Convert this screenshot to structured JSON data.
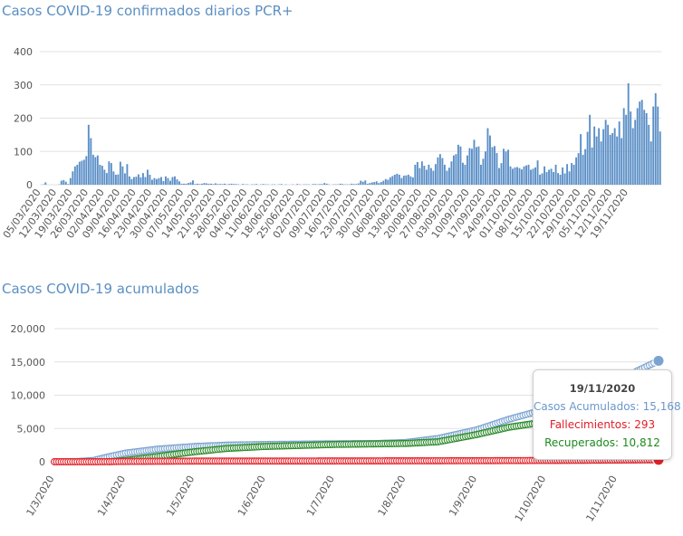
{
  "colors": {
    "bars": "#5b8fc7",
    "accumulated": "#7ba3d1",
    "deaths": "#e3242b",
    "recovered": "#2a8a2a",
    "title": "#5b8fc2"
  },
  "chart_data": [
    {
      "type": "bar",
      "title": "Casos COVID-19 confirmados diarios PCR+",
      "ylim": [
        0,
        400
      ],
      "yticks": [
        "0",
        "100",
        "200",
        "300",
        "400"
      ],
      "date_start": "2020-03-05",
      "xtick_labels": [
        "05/03/2020",
        "12/03/2020",
        "19/03/2020",
        "26/03/2020",
        "02/04/2020",
        "09/04/2020",
        "16/04/2020",
        "23/04/2020",
        "30/04/2020",
        "07/05/2020",
        "14/05/2020",
        "21/05/2020",
        "28/05/2020",
        "04/06/2020",
        "11/06/2020",
        "18/06/2020",
        "25/06/2020",
        "02/07/2020",
        "09/07/2020",
        "16/07/2020",
        "23/07/2020",
        "30/07/2020",
        "06/08/2020",
        "13/08/2020",
        "20/08/2020",
        "27/08/2020",
        "03/09/2020",
        "10/09/2020",
        "17/09/2020",
        "24/09/2020",
        "01/10/2020",
        "08/10/2020",
        "15/10/2020",
        "22/10/2020",
        "29/10/2020",
        "05/11/2020",
        "12/11/2020",
        "19/11/2020"
      ],
      "values": [
        0,
        1,
        7,
        0,
        0,
        0,
        0,
        0,
        1,
        12,
        14,
        9,
        2,
        20,
        40,
        55,
        60,
        69,
        72,
        75,
        86,
        180,
        140,
        90,
        83,
        88,
        60,
        57,
        45,
        35,
        70,
        65,
        40,
        30,
        31,
        69,
        55,
        34,
        62,
        25,
        17,
        23,
        24,
        31,
        22,
        35,
        23,
        45,
        30,
        15,
        20,
        17,
        20,
        23,
        11,
        25,
        20,
        12,
        23,
        25,
        16,
        10,
        3,
        3,
        3,
        5,
        7,
        13,
        2,
        3,
        2,
        3,
        5,
        4,
        3,
        3,
        2,
        4,
        2,
        2,
        2,
        3,
        1,
        2,
        3,
        2,
        2,
        1,
        0,
        2,
        1,
        1,
        0,
        1,
        1,
        2,
        0,
        1,
        2,
        1,
        1,
        0,
        1,
        1,
        0,
        1,
        2,
        0,
        1,
        0,
        0,
        1,
        0,
        2,
        1,
        0,
        1,
        1,
        1,
        0,
        2,
        2,
        1,
        2,
        2,
        5,
        3,
        1,
        0,
        1,
        1,
        1,
        3,
        2,
        1,
        1,
        1,
        3,
        2,
        2,
        4,
        12,
        9,
        13,
        3,
        5,
        7,
        8,
        10,
        5,
        8,
        12,
        17,
        15,
        22,
        26,
        30,
        33,
        30,
        20,
        27,
        28,
        30,
        25,
        22,
        60,
        68,
        50,
        70,
        57,
        45,
        60,
        50,
        42,
        62,
        82,
        92,
        80,
        60,
        42,
        51,
        70,
        88,
        92,
        120,
        115,
        66,
        60,
        88,
        110,
        108,
        135,
        113,
        115,
        60,
        78,
        100,
        170,
        148,
        113,
        116,
        95,
        50,
        65,
        108,
        100,
        105,
        55,
        48,
        52,
        53,
        50,
        46,
        55,
        58,
        60,
        45,
        48,
        52,
        73,
        30,
        34,
        55,
        38,
        45,
        48,
        38,
        60,
        35,
        30,
        52,
        34,
        62,
        40,
        65,
        60,
        82,
        95,
        152,
        90,
        107,
        159,
        210,
        112,
        175,
        145,
        170,
        130,
        167,
        195,
        180,
        150,
        155,
        170,
        145,
        190,
        140,
        230,
        210,
        305,
        220,
        170,
        195,
        230,
        250,
        255,
        225,
        215,
        180,
        130,
        235,
        275,
        235,
        160
      ]
    },
    {
      "type": "line",
      "title": "Casos COVID-19 acumulados",
      "ylim": [
        0,
        20000
      ],
      "yticks": [
        "0",
        "5,000",
        "10,000",
        "15,000",
        "20,000"
      ],
      "xtick_labels": [
        "1/3/2020",
        "1/4/2020",
        "1/5/2020",
        "1/6/2020",
        "1/7/2020",
        "1/8/2020",
        "1/9/2020",
        "1/10/2020",
        "1/11/2020"
      ],
      "series": [
        {
          "name": "Casos Acumulados",
          "points": [
            [
              "2020-03-01",
              0
            ],
            [
              "2020-03-10",
              20
            ],
            [
              "2020-03-18",
              200
            ],
            [
              "2020-03-24",
              700
            ],
            [
              "2020-04-01",
              1300
            ],
            [
              "2020-04-15",
              1900
            ],
            [
              "2020-05-01",
              2300
            ],
            [
              "2020-05-15",
              2500
            ],
            [
              "2020-06-01",
              2600
            ],
            [
              "2020-07-01",
              2700
            ],
            [
              "2020-07-20",
              2750
            ],
            [
              "2020-08-01",
              2900
            ],
            [
              "2020-08-15",
              3500
            ],
            [
              "2020-09-01",
              4800
            ],
            [
              "2020-09-15",
              6400
            ],
            [
              "2020-10-01",
              7900
            ],
            [
              "2020-10-15",
              9000
            ],
            [
              "2020-11-01",
              11800
            ],
            [
              "2020-11-10",
              13700
            ],
            [
              "2020-11-19",
              15168
            ]
          ]
        },
        {
          "name": "Fallecimientos",
          "points": [
            [
              "2020-03-01",
              0
            ],
            [
              "2020-03-20",
              0
            ],
            [
              "2020-04-01",
              50
            ],
            [
              "2020-05-01",
              100
            ],
            [
              "2020-07-01",
              120
            ],
            [
              "2020-09-01",
              160
            ],
            [
              "2020-10-15",
              210
            ],
            [
              "2020-11-19",
              293
            ]
          ]
        },
        {
          "name": "Recuperados",
          "points": [
            [
              "2020-03-25",
              0
            ],
            [
              "2020-04-01",
              200
            ],
            [
              "2020-04-15",
              800
            ],
            [
              "2020-05-01",
              1500
            ],
            [
              "2020-05-15",
              2000
            ],
            [
              "2020-06-01",
              2300
            ],
            [
              "2020-07-01",
              2600
            ],
            [
              "2020-08-01",
              2750
            ],
            [
              "2020-08-15",
              3000
            ],
            [
              "2020-09-01",
              4100
            ],
            [
              "2020-09-15",
              5200
            ],
            [
              "2020-10-01",
              6000
            ],
            [
              "2020-10-15",
              7500
            ],
            [
              "2020-11-01",
              9000
            ],
            [
              "2020-11-19",
              10812
            ]
          ]
        }
      ],
      "tooltip": {
        "date": "19/11/2020",
        "accumulated": "Casos Acumulados: 15,168",
        "deaths": "Fallecimientos: 293",
        "recovered": "Recuperados: 10,812"
      }
    }
  ]
}
